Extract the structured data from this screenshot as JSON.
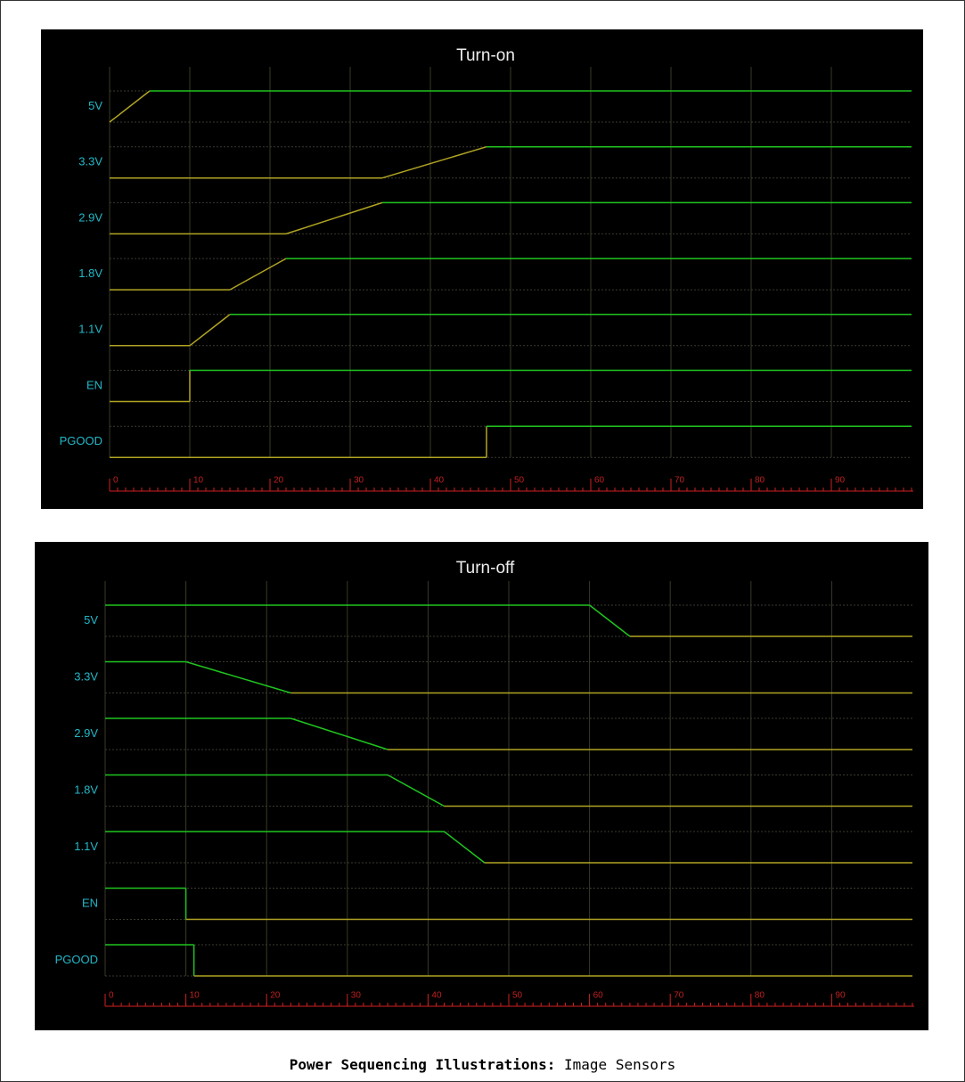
{
  "chart_data": [
    {
      "type": "timing",
      "title": "Turn-on",
      "xlim": [
        0,
        100
      ],
      "xticks": [
        0,
        10,
        20,
        30,
        40,
        50,
        60,
        70,
        80,
        90
      ],
      "high_color": "#1fc41f",
      "low_color": "#b0a423",
      "grid": true,
      "series": [
        {
          "name": "5V",
          "x": [
            0,
            5,
            100
          ],
          "values": [
            0,
            1,
            1
          ]
        },
        {
          "name": "3.3V",
          "x": [
            0,
            34,
            47,
            100
          ],
          "values": [
            0,
            0,
            1,
            1
          ]
        },
        {
          "name": "2.9V",
          "x": [
            0,
            22,
            34,
            100
          ],
          "values": [
            0,
            0,
            1,
            1
          ]
        },
        {
          "name": "1.8V",
          "x": [
            0,
            15,
            22,
            100
          ],
          "values": [
            0,
            0,
            1,
            1
          ]
        },
        {
          "name": "1.1V",
          "x": [
            0,
            10,
            15,
            100
          ],
          "values": [
            0,
            0,
            1,
            1
          ]
        },
        {
          "name": "EN",
          "x": [
            0,
            10,
            10,
            100
          ],
          "values": [
            0,
            0,
            1,
            1
          ]
        },
        {
          "name": "PGOOD",
          "x": [
            0,
            47,
            47,
            100
          ],
          "values": [
            0,
            0,
            1,
            1
          ]
        }
      ]
    },
    {
      "type": "timing",
      "title": "Turn-off",
      "xlim": [
        0,
        100
      ],
      "xticks": [
        0,
        10,
        20,
        30,
        40,
        50,
        60,
        70,
        80,
        90
      ],
      "high_color": "#1fc41f",
      "low_color": "#b0a423",
      "grid": true,
      "series": [
        {
          "name": "5V",
          "x": [
            0,
            60,
            65,
            100
          ],
          "values": [
            1,
            1,
            0,
            0
          ]
        },
        {
          "name": "3.3V",
          "x": [
            0,
            10,
            23,
            100
          ],
          "values": [
            1,
            1,
            0,
            0
          ]
        },
        {
          "name": "2.9V",
          "x": [
            0,
            23,
            35,
            100
          ],
          "values": [
            1,
            1,
            0,
            0
          ]
        },
        {
          "name": "1.8V",
          "x": [
            0,
            35,
            42,
            100
          ],
          "values": [
            1,
            1,
            0,
            0
          ]
        },
        {
          "name": "1.1V",
          "x": [
            0,
            42,
            47,
            100
          ],
          "values": [
            1,
            1,
            0,
            0
          ]
        },
        {
          "name": "EN",
          "x": [
            0,
            10,
            10,
            100
          ],
          "values": [
            1,
            1,
            0,
            0
          ]
        },
        {
          "name": "PGOOD",
          "x": [
            0,
            11,
            11,
            100
          ],
          "values": [
            1,
            1,
            0,
            0
          ]
        }
      ]
    }
  ],
  "caption": {
    "label": "Power Sequencing Illustrations:",
    "text": "Image Sensors"
  }
}
